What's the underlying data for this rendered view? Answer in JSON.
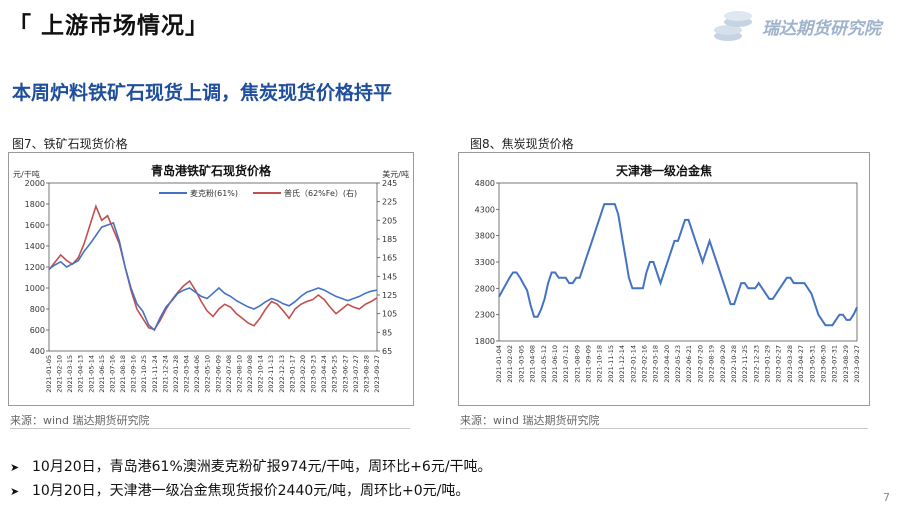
{
  "header": {
    "title": "「 上游市场情况」"
  },
  "logo": {
    "text": "瑞达期货研究院",
    "icon": "coin-stack-icon"
  },
  "subtitle": "本周炉料铁矿石现货上调，焦炭现货价格持平",
  "figures": [
    {
      "caption": "图7、铁矿石现货价格",
      "source": "来源：wind   瑞达期货研究院"
    },
    {
      "caption": "图8、焦炭现货价格",
      "source": "来源：wind   瑞达期货研究院"
    }
  ],
  "bullets": [
    "10月20日，青岛港61%澳洲麦克粉矿报974元/干吨，周环比+6元/干吨。",
    "10月20日，天津港一级冶金焦现货报价2440元/吨，周环比+0元/吨。"
  ],
  "page_number": "7",
  "colors": {
    "blue": "#4472c4",
    "red": "#c0504d",
    "title_blue": "#1f4e9c"
  },
  "chart_data": [
    {
      "type": "line",
      "title": "青岛港铁矿石现货价格",
      "y_left_label": "元/干吨",
      "y_right_label": "美元/吨",
      "ylim": [
        400,
        2000
      ],
      "ylim_right": [
        65,
        245
      ],
      "y_ticks": [
        "400",
        "600",
        "800",
        "1000",
        "1200",
        "1400",
        "1600",
        "1800",
        "2000"
      ],
      "y_right_ticks": [
        "65",
        "85",
        "105",
        "125",
        "145",
        "165",
        "185",
        "205",
        "225",
        "245"
      ],
      "x_labels": [
        "2021-01-05",
        "2021-02-10",
        "2021-03-15",
        "2021-04-13",
        "2021-05-14",
        "2021-06-15",
        "2021-07-16",
        "2021-08-18",
        "2021-09-16",
        "2021-10-25",
        "2021-11-24",
        "2021-12-24",
        "2022-01-28",
        "2022-03-04",
        "2022-04-06",
        "2022-05-10",
        "2022-06-09",
        "2022-07-08",
        "2022-08-10",
        "2022-09-08",
        "2022-10-14",
        "2022-11-13",
        "2022-12-13",
        "2023-01-17",
        "2023-02-20",
        "2023-03-23",
        "2023-04-24",
        "2023-05-25",
        "2023-06-27",
        "2023-07-27",
        "2023-08-28",
        "2023-09-27"
      ],
      "legend_position": "top",
      "grid": false,
      "series": [
        {
          "name": "麦克粉(61%)",
          "axis": "left",
          "color": "#4472c4",
          "values": [
            1180,
            1220,
            1250,
            1200,
            1230,
            1260,
            1350,
            1420,
            1500,
            1580,
            1600,
            1620,
            1450,
            1200,
            1000,
            850,
            780,
            650,
            600,
            720,
            820,
            880,
            950,
            980,
            1000,
            960,
            920,
            900,
            950,
            1000,
            950,
            920,
            880,
            850,
            820,
            800,
            830,
            870,
            900,
            880,
            850,
            830,
            870,
            920,
            960,
            980,
            1000,
            980,
            950,
            920,
            900,
            880,
            900,
            920,
            950,
            970,
            980
          ]
        },
        {
          "name": "普氏（62%Fe）(右)",
          "axis": "right",
          "color": "#c0504d",
          "values": [
            152,
            160,
            168,
            162,
            158,
            165,
            180,
            200,
            220,
            205,
            210,
            195,
            180,
            155,
            130,
            110,
            100,
            90,
            88,
            98,
            110,
            120,
            128,
            135,
            140,
            130,
            118,
            108,
            102,
            110,
            115,
            112,
            105,
            100,
            95,
            92,
            100,
            110,
            118,
            115,
            108,
            100,
            110,
            115,
            118,
            120,
            125,
            120,
            112,
            105,
            110,
            115,
            112,
            110,
            115,
            118,
            122
          ]
        }
      ]
    },
    {
      "type": "line",
      "title": "天津港一级冶金焦",
      "ylim": [
        1800,
        4800
      ],
      "y_ticks": [
        "1800",
        "2300",
        "2800",
        "3300",
        "3800",
        "4300",
        "4800"
      ],
      "x_labels": [
        "2021-01-04",
        "2021-02-02",
        "2021-03-05",
        "2021-04-08",
        "2021-05-12",
        "2021-06-10",
        "2021-07-12",
        "2021-08-09",
        "2021-09-09",
        "2021-10-18",
        "2021-11-15",
        "2021-12-14",
        "2022-01-14",
        "2022-02-16",
        "2022-03-18",
        "2022-04-20",
        "2022-05-23",
        "2022-06-21",
        "2022-07-20",
        "2022-08-19",
        "2022-09-20",
        "2022-10-28",
        "2022-11-25",
        "2022-12-23",
        "2023-01-29",
        "2023-02-27",
        "2023-03-28",
        "2023-04-27",
        "2023-05-31",
        "2023-06-30",
        "2023-07-31",
        "2023-08-29",
        "2023-09-27"
      ],
      "grid": false,
      "series": [
        {
          "name": "天津港一级冶金焦",
          "color": "#4472c4",
          "values": [
            2640,
            2760,
            2880,
            3000,
            3100,
            3100,
            3000,
            2880,
            2760,
            2480,
            2260,
            2260,
            2400,
            2600,
            2900,
            3100,
            3100,
            3000,
            3000,
            3000,
            2900,
            2900,
            3000,
            3000,
            3200,
            3400,
            3600,
            3800,
            4000,
            4200,
            4400,
            4400,
            4400,
            4400,
            4200,
            3800,
            3400,
            3000,
            2800,
            2800,
            2800,
            2800,
            3100,
            3300,
            3300,
            3100,
            2900,
            3100,
            3300,
            3500,
            3700,
            3700,
            3900,
            4100,
            4100,
            3900,
            3700,
            3500,
            3300,
            3500,
            3700,
            3500,
            3300,
            3100,
            2900,
            2700,
            2500,
            2500,
            2700,
            2900,
            2900,
            2800,
            2800,
            2800,
            2900,
            2800,
            2700,
            2600,
            2600,
            2700,
            2800,
            2900,
            3000,
            3000,
            2900,
            2900,
            2900,
            2900,
            2800,
            2700,
            2500,
            2300,
            2200,
            2100,
            2100,
            2100,
            2200,
            2300,
            2300,
            2200,
            2200,
            2300,
            2440
          ]
        }
      ]
    }
  ]
}
